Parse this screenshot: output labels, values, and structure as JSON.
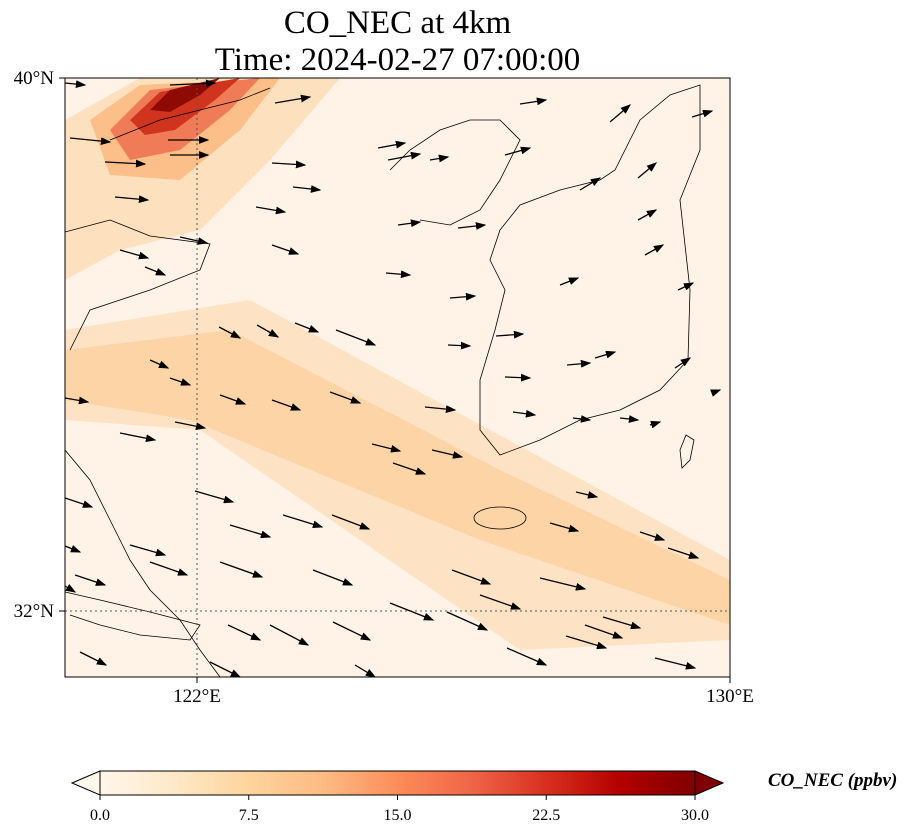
{
  "title": {
    "line1": "CO_NEC at 4km",
    "line2": "Time: 2024-02-27 07:00:00"
  },
  "axes": {
    "lat_ticks": [
      {
        "label": "40°N",
        "value": 40
      },
      {
        "label": "32°N",
        "value": 32
      }
    ],
    "lon_ticks": [
      {
        "label": "122°E",
        "value": 122
      },
      {
        "label": "130°E",
        "value": 130
      }
    ],
    "lon_range": [
      120,
      130
    ],
    "lat_range": [
      31,
      40
    ],
    "gridlines": "dotted at 122°E and 32°N"
  },
  "colorbar": {
    "label": "CO_NEC (ppbv)",
    "ticks": [
      "0.0",
      "7.5",
      "15.0",
      "22.5",
      "30.0"
    ],
    "range": [
      0,
      30
    ],
    "extend": "both",
    "colormap": "OrRd",
    "colors": [
      "#fff7ec",
      "#fee8c8",
      "#fdd49e",
      "#fdbb84",
      "#fc8d59",
      "#ef6548",
      "#d7301f",
      "#b30000",
      "#7f0000"
    ]
  },
  "chart_data": {
    "type": "heatmap",
    "variable": "CO_NEC",
    "units": "ppbv",
    "level": "4km",
    "time": "2024-02-27 07:00:00",
    "max_region": "northwest corner near 39.5°N 121.5°E, ~25-30 ppbv",
    "plume": "band ~8-12 ppbv from west (~34.5°N) extending southeast to ~32°N 130°E",
    "background": "~0-3 ppbv over Korean peninsula and northeast",
    "overlay": "wind vectors, predominantly westerly turning northwesterly in south"
  }
}
